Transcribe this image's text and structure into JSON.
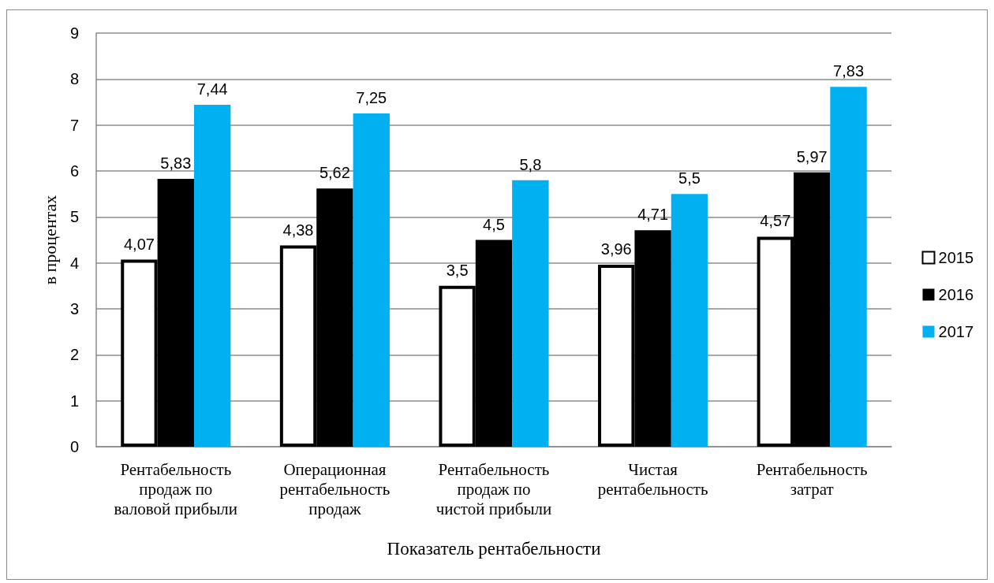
{
  "chart_data": {
    "type": "bar",
    "categories": [
      "Рентабельность продаж по валовой прибыли",
      "Операционная рентабельность продаж",
      "Рентабельность продаж по чистой прибыли",
      "Чистая рентабельность",
      "Рентабельность затрат"
    ],
    "xlabel": "Показатель рентабельности",
    "ylabel": "в процентах",
    "series": [
      {
        "name": "2015",
        "color": "#ffffff",
        "values": [
          4.07,
          4.38,
          3.5,
          3.96,
          4.57
        ],
        "value_labels": [
          "4,07",
          "4,38",
          "3,5",
          "3,96",
          "4,57"
        ]
      },
      {
        "name": "2016",
        "color": "#000000",
        "values": [
          5.83,
          5.62,
          4.5,
          4.71,
          5.97
        ],
        "value_labels": [
          "5,83",
          "5,62",
          "4,5",
          "4,71",
          "5,97"
        ]
      },
      {
        "name": "2017",
        "color": "#00b0f0",
        "values": [
          7.44,
          7.25,
          5.8,
          5.5,
          7.83
        ],
        "value_labels": [
          "7,44",
          "7,25",
          "5,8",
          "5,5",
          "7,83"
        ]
      }
    ],
    "ylim": [
      0,
      9
    ],
    "yticks": [
      0,
      1,
      2,
      3,
      4,
      5,
      6,
      7,
      8,
      9
    ],
    "grid": "y",
    "legend": "right"
  }
}
